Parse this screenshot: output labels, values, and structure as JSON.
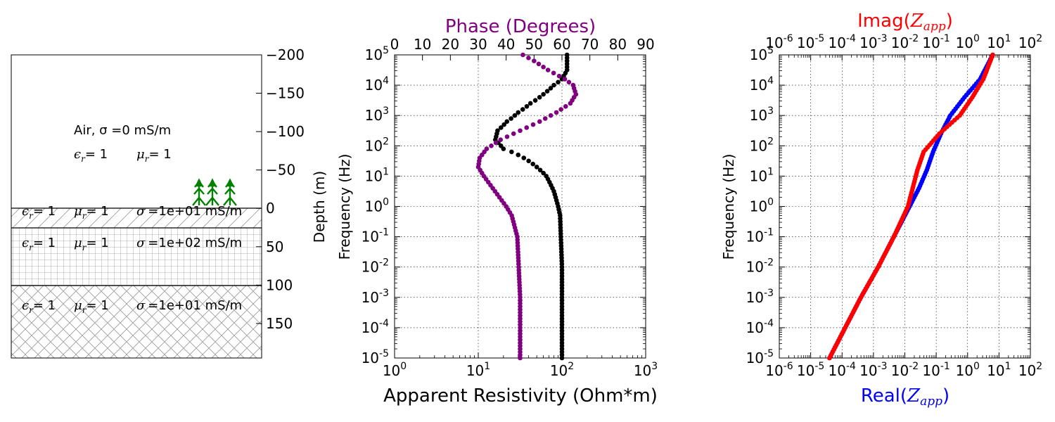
{
  "colors": {
    "phase": "#800080",
    "resistivity": "#000000",
    "real": "#0000ff",
    "imag": "#ff0000",
    "receiver": "#008000",
    "grid": "#000000",
    "hatch": "#999999"
  },
  "chart_data": [
    {
      "type": "layer-model",
      "ylabel": "Depth (m)",
      "ylim": [
        -200,
        195
      ],
      "yticks": [
        "−200",
        "−150",
        "−100",
        "−50",
        "0",
        "50",
        "100",
        "150"
      ],
      "ytick_values": [
        -200,
        -150,
        -100,
        -50,
        0,
        50,
        100,
        150
      ],
      "air": {
        "label": "Air, σ =0 mS/m",
        "eps": "ϵ",
        "eps_sub": "r",
        "eps_value": "= 1",
        "mu": "μ",
        "mu_sub": "r",
        "mu_value": "= 1"
      },
      "layers": [
        {
          "top": 0,
          "bottom": 25,
          "eps": "ϵ",
          "eps_sub": "r",
          "eps_value": "= 1",
          "mu": "μ",
          "mu_sub": "r",
          "mu_value": "= 1",
          "sigma_symbol": "σ",
          "sigma_value": "=1e+01 mS/m",
          "hatch": "diagonal"
        },
        {
          "top": 25,
          "bottom": 100,
          "eps": "ϵ",
          "eps_sub": "r",
          "eps_value": "= 1",
          "mu": "μ",
          "mu_sub": "r",
          "mu_value": "= 1",
          "sigma_symbol": "σ",
          "sigma_value": "=1e+02 mS/m",
          "hatch": "grid"
        },
        {
          "top": 100,
          "bottom": 195,
          "eps": "ϵ",
          "eps_sub": "r",
          "eps_value": "= 1",
          "mu": "μ",
          "mu_sub": "r",
          "mu_value": "= 1",
          "sigma_symbol": "σ",
          "sigma_value": "=1e+01 mS/m",
          "hatch": "cross"
        }
      ],
      "receivers": 3
    },
    {
      "type": "scatter",
      "xlabel": "Apparent Resistivity (Ohm*m)",
      "x2label": "Phase (Degrees)",
      "ylabel": "Frequency (Hz)",
      "xlim": [
        1,
        1000
      ],
      "x2lim": [
        0,
        90
      ],
      "ylim": [
        1e-05,
        100000.0
      ],
      "xticks": [
        "10",
        "10",
        "10",
        "10"
      ],
      "xtick_exp": [
        "0",
        "1",
        "2",
        "3"
      ],
      "x2ticks": [
        "0",
        "10",
        "20",
        "30",
        "40",
        "50",
        "60",
        "70",
        "80",
        "90"
      ],
      "yticks": [
        "10",
        "10",
        "10",
        "10",
        "10",
        "10",
        "10",
        "10",
        "10",
        "10",
        "10"
      ],
      "ytick_exp": [
        "-5",
        "-4",
        "-3",
        "-2",
        "-1",
        "0",
        "1",
        "2",
        "3",
        "4",
        "5"
      ],
      "grid": true,
      "series": [
        {
          "name": "Apparent Resistivity",
          "axis": "bottom",
          "points": [
            [
              100,
              -5
            ],
            [
              100,
              -4
            ],
            [
              100,
              -3
            ],
            [
              100,
              -2
            ],
            [
              97,
              -1
            ],
            [
              95,
              -0.3
            ],
            [
              90,
              0
            ],
            [
              80,
              0.5
            ],
            [
              65,
              1
            ],
            [
              50,
              1.3
            ],
            [
              35,
              1.6
            ],
            [
              20,
              1.9
            ],
            [
              16,
              2.2
            ],
            [
              17,
              2.5
            ],
            [
              22,
              2.8
            ],
            [
              30,
              3.1
            ],
            [
              42,
              3.4
            ],
            [
              60,
              3.7
            ],
            [
              80,
              4
            ],
            [
              100,
              4.2
            ],
            [
              115,
              4.5
            ],
            [
              115,
              5
            ]
          ]
        },
        {
          "name": "Phase",
          "axis": "top",
          "points": [
            [
              45,
              -5
            ],
            [
              45,
              -4
            ],
            [
              45,
              -3
            ],
            [
              44.5,
              -2
            ],
            [
              44,
              -1
            ],
            [
              42,
              -0.3
            ],
            [
              40,
              0
            ],
            [
              36,
              0.5
            ],
            [
              32,
              1
            ],
            [
              30,
              1.3
            ],
            [
              30.5,
              1.6
            ],
            [
              33,
              1.9
            ],
            [
              38,
              2.2
            ],
            [
              45,
              2.5
            ],
            [
              52,
              2.8
            ],
            [
              58,
              3.1
            ],
            [
              63,
              3.4
            ],
            [
              65,
              3.7
            ],
            [
              64,
              4
            ],
            [
              61,
              4.2
            ],
            [
              55,
              4.5
            ],
            [
              50,
              4.8
            ],
            [
              46,
              5
            ]
          ]
        }
      ]
    },
    {
      "type": "scatter",
      "xlabel": "Real(",
      "x2label": "Imag(",
      "zapp": "Z",
      "zapp_sub": "app",
      "close_paren": ")",
      "ylabel": "Frequency (Hz)",
      "xlim": [
        1e-06,
        100.0
      ],
      "ylim": [
        1e-05,
        100000.0
      ],
      "xticks": [
        "10",
        "10",
        "10",
        "10",
        "10",
        "10",
        "10",
        "10",
        "10"
      ],
      "xtick_exp": [
        "-6",
        "-5",
        "-4",
        "-3",
        "-2",
        "-1",
        "0",
        "1",
        "2"
      ],
      "yticks": [
        "10",
        "10",
        "10",
        "10",
        "10",
        "10",
        "10",
        "10",
        "10",
        "10",
        "10"
      ],
      "ytick_exp": [
        "-5",
        "-4",
        "-3",
        "-2",
        "-1",
        "0",
        "1",
        "2",
        "3",
        "4",
        "5"
      ],
      "grid": true,
      "series": [
        {
          "name": "Real(Zapp)",
          "axis": "bottom",
          "points": [
            [
              -4.4,
              -5
            ],
            [
              -3.9,
              -4
            ],
            [
              -3.4,
              -3
            ],
            [
              -2.85,
              -2
            ],
            [
              -2.35,
              -1
            ],
            [
              -1.85,
              0
            ],
            [
              -1.55,
              0.6
            ],
            [
              -1.3,
              1.2
            ],
            [
              -1.1,
              1.8
            ],
            [
              -0.85,
              2.4
            ],
            [
              -0.55,
              3
            ],
            [
              -0.1,
              3.6
            ],
            [
              0.4,
              4.2
            ],
            [
              0.8,
              5
            ]
          ]
        },
        {
          "name": "Imag(Zapp)",
          "axis": "top",
          "points": [
            [
              -4.4,
              -5
            ],
            [
              -3.9,
              -4
            ],
            [
              -3.4,
              -3
            ],
            [
              -2.85,
              -2
            ],
            [
              -2.35,
              -1
            ],
            [
              -1.9,
              0
            ],
            [
              -1.75,
              0.6
            ],
            [
              -1.6,
              1.2
            ],
            [
              -1.4,
              1.8
            ],
            [
              -0.9,
              2.4
            ],
            [
              -0.25,
              3
            ],
            [
              0.15,
              3.6
            ],
            [
              0.5,
              4.2
            ],
            [
              0.8,
              5
            ]
          ]
        }
      ]
    }
  ]
}
